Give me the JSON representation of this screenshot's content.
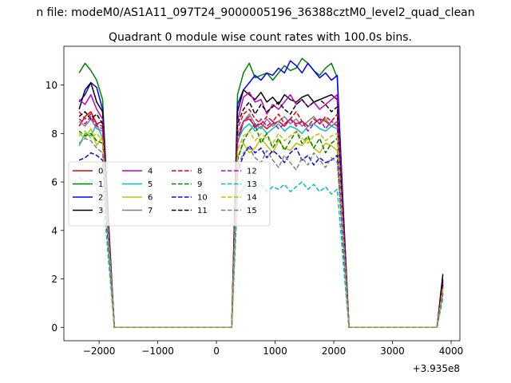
{
  "chart_data": {
    "type": "line",
    "suptitle": "n file: modeM0/AS1A11_097T24_9000005196_36388cztM0_level2_quad_clean",
    "title": "Quadrant 0 module wise count rates with 100.0s bins.",
    "xlabel": "",
    "ylabel": "",
    "x_offset_label": "+3.935e8",
    "xlim": [
      -2600,
      4150
    ],
    "ylim": [
      -0.55,
      11.6
    ],
    "xticks": [
      -2000,
      -1000,
      0,
      1000,
      2000,
      3000,
      4000
    ],
    "xtick_labels": [
      "−2000",
      "−1000",
      "0",
      "1000",
      "2000",
      "3000",
      "4000"
    ],
    "yticks": [
      0,
      2,
      4,
      6,
      8,
      10
    ],
    "ytick_labels": [
      "0",
      "2",
      "4",
      "6",
      "8",
      "10"
    ],
    "grid": false,
    "legend_position": "center-left",
    "legend_columns": 4,
    "x": [
      -2340,
      -2240,
      -2140,
      -2040,
      -1940,
      -1840,
      -1740,
      -1640,
      -1540,
      -1440,
      -1340,
      -1240,
      -1140,
      -1040,
      -940,
      -840,
      -740,
      -640,
      -540,
      -440,
      -340,
      -240,
      -140,
      -40,
      60,
      160,
      260,
      360,
      460,
      560,
      660,
      760,
      860,
      960,
      1060,
      1160,
      1260,
      1360,
      1460,
      1560,
      1660,
      1760,
      1860,
      1960,
      2060,
      2160,
      2260,
      2360,
      2460,
      2560,
      2660,
      2760,
      2860,
      2960,
      3060,
      3160,
      3260,
      3360,
      3460,
      3560,
      3660,
      3760,
      3860
    ],
    "series": [
      {
        "name": "0",
        "color": "#e8000b",
        "dash": "solid",
        "values": [
          8.3,
          8.7,
          8.9,
          8.4,
          8.5,
          4.0,
          0,
          0,
          0,
          0,
          0,
          0,
          0,
          0,
          0,
          0,
          0,
          0,
          0,
          0,
          0,
          0,
          0,
          0,
          0,
          0,
          0,
          7.6,
          8.5,
          8.6,
          8.3,
          8.4,
          8.2,
          8.4,
          8.5,
          8.3,
          8.6,
          8.4,
          8.5,
          8.3,
          8.4,
          8.6,
          8.5,
          8.3,
          8.5,
          4.0,
          0,
          0,
          0,
          0,
          0,
          0,
          0,
          0,
          0,
          0,
          0,
          0,
          0,
          0,
          0,
          0,
          1.7
        ]
      },
      {
        "name": "1",
        "color": "#008000",
        "dash": "solid",
        "values": [
          10.5,
          10.9,
          10.6,
          10.2,
          9.4,
          4.5,
          0,
          0,
          0,
          0,
          0,
          0,
          0,
          0,
          0,
          0,
          0,
          0,
          0,
          0,
          0,
          0,
          0,
          0,
          0,
          0,
          0,
          9.6,
          10.5,
          10.9,
          10.3,
          10.4,
          10.5,
          10.2,
          10.5,
          10.8,
          10.6,
          10.7,
          11.1,
          10.9,
          10.6,
          10.4,
          10.7,
          10.9,
          10.3,
          5.0,
          0,
          0,
          0,
          0,
          0,
          0,
          0,
          0,
          0,
          0,
          0,
          0,
          0,
          0,
          0,
          0,
          2.0
        ]
      },
      {
        "name": "2",
        "color": "#0000ff",
        "dash": "solid",
        "values": [
          9.3,
          9.6,
          10.1,
          9.9,
          9.0,
          4.3,
          0,
          0,
          0,
          0,
          0,
          0,
          0,
          0,
          0,
          0,
          0,
          0,
          0,
          0,
          0,
          0,
          0,
          0,
          0,
          0,
          0,
          9.2,
          9.8,
          10.1,
          10.4,
          10.2,
          10.5,
          10.4,
          10.7,
          10.5,
          11.0,
          10.8,
          10.5,
          10.9,
          10.6,
          10.3,
          10.5,
          10.2,
          10.4,
          4.9,
          0,
          0,
          0,
          0,
          0,
          0,
          0,
          0,
          0,
          0,
          0,
          0,
          0,
          0,
          0,
          0,
          1.9
        ]
      },
      {
        "name": "3",
        "color": "#000000",
        "dash": "solid",
        "values": [
          9.0,
          9.8,
          10.1,
          9.3,
          8.9,
          4.2,
          0,
          0,
          0,
          0,
          0,
          0,
          0,
          0,
          0,
          0,
          0,
          0,
          0,
          0,
          0,
          0,
          0,
          0,
          0,
          0,
          0,
          8.9,
          9.8,
          9.6,
          9.4,
          9.7,
          9.3,
          9.5,
          9.2,
          9.6,
          9.4,
          9.3,
          9.5,
          9.6,
          9.3,
          9.4,
          9.5,
          9.6,
          9.4,
          4.4,
          0,
          0,
          0,
          0,
          0,
          0,
          0,
          0,
          0,
          0,
          0,
          0,
          0,
          0,
          0,
          0,
          2.2
        ]
      },
      {
        "name": "4",
        "color": "#c000c0",
        "dash": "solid",
        "values": [
          9.4,
          9.2,
          9.6,
          9.0,
          8.6,
          4.1,
          0,
          0,
          0,
          0,
          0,
          0,
          0,
          0,
          0,
          0,
          0,
          0,
          0,
          0,
          0,
          0,
          0,
          0,
          0,
          0,
          0,
          8.5,
          9.5,
          9.7,
          9.3,
          9.4,
          8.8,
          9.2,
          9.0,
          9.3,
          9.6,
          9.2,
          9.4,
          9.1,
          9.3,
          9.0,
          9.2,
          9.4,
          9.6,
          4.5,
          0,
          0,
          0,
          0,
          0,
          0,
          0,
          0,
          0,
          0,
          0,
          0,
          0,
          0,
          0,
          0,
          1.8
        ]
      },
      {
        "name": "5",
        "color": "#00c0c0",
        "dash": "solid",
        "values": [
          7.5,
          8.0,
          7.9,
          8.4,
          7.8,
          3.7,
          0,
          0,
          0,
          0,
          0,
          0,
          0,
          0,
          0,
          0,
          0,
          0,
          0,
          0,
          0,
          0,
          0,
          0,
          0,
          0,
          0,
          7.7,
          8.2,
          8.4,
          8.1,
          8.3,
          8.0,
          8.2,
          8.4,
          8.1,
          8.3,
          8.2,
          8.0,
          8.3,
          8.4,
          8.2,
          8.1,
          8.3,
          8.2,
          3.9,
          0,
          0,
          0,
          0,
          0,
          0,
          0,
          0,
          0,
          0,
          0,
          0,
          0,
          0,
          0,
          0,
          1.6
        ]
      },
      {
        "name": "6",
        "color": "#c0c000",
        "dash": "solid",
        "values": [
          8.0,
          7.8,
          8.2,
          7.5,
          7.9,
          3.6,
          0,
          0,
          0,
          0,
          0,
          0,
          0,
          0,
          0,
          0,
          0,
          0,
          0,
          0,
          0,
          0,
          0,
          0,
          0,
          0,
          0,
          7.0,
          7.6,
          7.2,
          7.4,
          7.8,
          7.5,
          7.2,
          7.7,
          7.4,
          7.3,
          7.6,
          7.5,
          7.8,
          7.4,
          7.2,
          7.6,
          7.5,
          7.3,
          3.8,
          0,
          0,
          0,
          0,
          0,
          0,
          0,
          0,
          0,
          0,
          0,
          0,
          0,
          0,
          0,
          0,
          1.5
        ]
      },
      {
        "name": "7",
        "color": "#808080",
        "dash": "solid",
        "values": [
          8.5,
          8.3,
          8.6,
          8.2,
          8.1,
          3.9,
          0,
          0,
          0,
          0,
          0,
          0,
          0,
          0,
          0,
          0,
          0,
          0,
          0,
          0,
          0,
          0,
          0,
          0,
          0,
          0,
          0,
          8.0,
          8.5,
          8.8,
          8.4,
          8.2,
          8.6,
          8.3,
          8.5,
          8.7,
          8.4,
          8.6,
          8.3,
          8.5,
          8.7,
          8.4,
          8.6,
          8.3,
          8.5,
          4.1,
          0,
          0,
          0,
          0,
          0,
          0,
          0,
          0,
          0,
          0,
          0,
          0,
          0,
          0,
          0,
          0,
          1.7
        ]
      },
      {
        "name": "8",
        "color": "#e8000b",
        "dash": "dashed",
        "values": [
          8.9,
          8.6,
          8.8,
          8.4,
          8.3,
          4.0,
          0,
          0,
          0,
          0,
          0,
          0,
          0,
          0,
          0,
          0,
          0,
          0,
          0,
          0,
          0,
          0,
          0,
          0,
          0,
          0,
          0,
          8.2,
          8.8,
          9.0,
          8.6,
          8.4,
          8.7,
          8.5,
          8.8,
          8.4,
          8.6,
          8.9,
          8.5,
          8.3,
          8.6,
          8.4,
          8.7,
          8.5,
          8.8,
          4.2,
          0,
          0,
          0,
          0,
          0,
          0,
          0,
          0,
          0,
          0,
          0,
          0,
          0,
          0,
          0,
          0,
          1.7
        ]
      },
      {
        "name": "9",
        "color": "#008000",
        "dash": "dashed",
        "values": [
          8.1,
          7.9,
          8.0,
          7.7,
          7.6,
          3.6,
          0,
          0,
          0,
          0,
          0,
          0,
          0,
          0,
          0,
          0,
          0,
          0,
          0,
          0,
          0,
          0,
          0,
          0,
          0,
          0,
          0,
          6.9,
          7.7,
          8.1,
          8.4,
          7.6,
          8.0,
          7.4,
          7.8,
          7.3,
          7.7,
          8.1,
          7.6,
          7.9,
          7.4,
          7.8,
          7.2,
          7.6,
          7.8,
          3.7,
          0,
          0,
          0,
          0,
          0,
          0,
          0,
          0,
          0,
          0,
          0,
          0,
          0,
          0,
          0,
          0,
          1.6
        ]
      },
      {
        "name": "10",
        "color": "#0000ff",
        "dash": "dashed",
        "values": [
          6.9,
          7.0,
          7.2,
          7.1,
          6.9,
          3.3,
          0,
          0,
          0,
          0,
          0,
          0,
          0,
          0,
          0,
          0,
          0,
          0,
          0,
          0,
          0,
          0,
          0,
          0,
          0,
          0,
          0,
          6.4,
          7.1,
          7.5,
          7.2,
          7.4,
          7.0,
          7.3,
          7.1,
          6.8,
          7.2,
          7.4,
          6.9,
          7.1,
          6.7,
          7.0,
          6.8,
          6.9,
          7.1,
          3.3,
          0,
          0,
          0,
          0,
          0,
          0,
          0,
          0,
          0,
          0,
          0,
          0,
          0,
          0,
          0,
          0,
          1.4
        ]
      },
      {
        "name": "11",
        "color": "#000000",
        "dash": "dashed",
        "values": [
          8.7,
          8.9,
          8.6,
          8.8,
          8.4,
          4.0,
          0,
          0,
          0,
          0,
          0,
          0,
          0,
          0,
          0,
          0,
          0,
          0,
          0,
          0,
          0,
          0,
          0,
          0,
          0,
          0,
          0,
          8.4,
          9.0,
          9.3,
          8.8,
          9.2,
          8.9,
          9.1,
          9.3,
          9.0,
          8.8,
          9.2,
          9.4,
          9.1,
          9.3,
          9.4,
          9.2,
          8.9,
          9.1,
          4.3,
          0,
          0,
          0,
          0,
          0,
          0,
          0,
          0,
          0,
          0,
          0,
          0,
          0,
          0,
          0,
          0,
          1.8
        ]
      },
      {
        "name": "12",
        "color": "#c000c0",
        "dash": "dashed",
        "values": [
          8.6,
          8.4,
          8.7,
          8.3,
          8.2,
          3.9,
          0,
          0,
          0,
          0,
          0,
          0,
          0,
          0,
          0,
          0,
          0,
          0,
          0,
          0,
          0,
          0,
          0,
          0,
          0,
          0,
          0,
          7.8,
          8.5,
          8.7,
          8.2,
          8.6,
          8.3,
          8.5,
          8.2,
          8.4,
          8.6,
          8.3,
          8.5,
          8.1,
          8.4,
          8.6,
          8.2,
          8.5,
          8.3,
          4.0,
          0,
          0,
          0,
          0,
          0,
          0,
          0,
          0,
          0,
          0,
          0,
          0,
          0,
          0,
          0,
          0,
          1.7
        ]
      },
      {
        "name": "13",
        "color": "#00c0c0",
        "dash": "dashed",
        "values": [
          6.2,
          6.0,
          6.1,
          5.9,
          5.8,
          2.8,
          0,
          0,
          0,
          0,
          0,
          0,
          0,
          0,
          0,
          0,
          0,
          0,
          0,
          0,
          0,
          0,
          0,
          0,
          0,
          0,
          0,
          5.4,
          5.8,
          6.0,
          5.7,
          5.9,
          5.6,
          5.8,
          5.7,
          5.9,
          5.6,
          5.8,
          6.0,
          5.7,
          5.9,
          5.6,
          5.8,
          5.5,
          5.7,
          2.7,
          0,
          0,
          0,
          0,
          0,
          0,
          0,
          0,
          0,
          0,
          0,
          0,
          0,
          0,
          0,
          0,
          1.2
        ]
      },
      {
        "name": "14",
        "color": "#c0c000",
        "dash": "dashed",
        "values": [
          7.9,
          8.1,
          7.8,
          8.0,
          7.7,
          3.7,
          0,
          0,
          0,
          0,
          0,
          0,
          0,
          0,
          0,
          0,
          0,
          0,
          0,
          0,
          0,
          0,
          0,
          0,
          0,
          0,
          0,
          7.3,
          7.9,
          8.1,
          7.7,
          8.0,
          7.8,
          7.6,
          8.0,
          7.7,
          7.9,
          8.1,
          7.8,
          7.6,
          7.9,
          8.0,
          7.7,
          7.9,
          8.0,
          3.8,
          0,
          0,
          0,
          0,
          0,
          0,
          0,
          0,
          0,
          0,
          0,
          0,
          0,
          0,
          0,
          0,
          1.6
        ]
      },
      {
        "name": "15",
        "color": "#808080",
        "dash": "dashed",
        "values": [
          7.6,
          7.8,
          7.7,
          7.4,
          7.2,
          3.5,
          0,
          0,
          0,
          0,
          0,
          0,
          0,
          0,
          0,
          0,
          0,
          0,
          0,
          0,
          0,
          0,
          0,
          0,
          0,
          0,
          0,
          6.6,
          7.2,
          7.4,
          7.0,
          6.8,
          7.3,
          6.9,
          6.6,
          7.1,
          6.8,
          6.5,
          7.0,
          6.7,
          7.2,
          6.9,
          6.6,
          7.0,
          6.8,
          3.4,
          0,
          0,
          0,
          0,
          0,
          0,
          0,
          0,
          0,
          0,
          0,
          0,
          0,
          0,
          0,
          0,
          1.4
        ]
      }
    ]
  }
}
